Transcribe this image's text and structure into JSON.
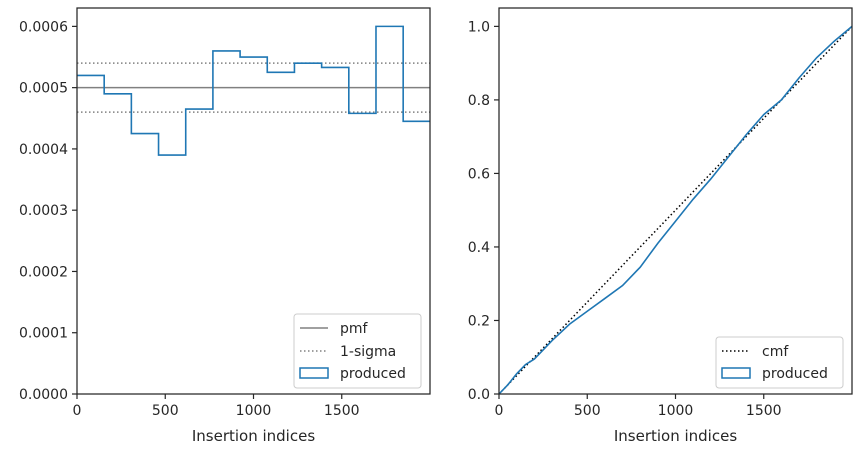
{
  "chart_data": [
    {
      "type": "step",
      "xlabel": "Insertion indices",
      "ylabel": "",
      "xlim": [
        0,
        2000
      ],
      "ylim": [
        0,
        0.00063
      ],
      "xticks": [
        0,
        500,
        1000,
        1500
      ],
      "xtick_labels": [
        "0",
        "500",
        "1000",
        "1500"
      ],
      "yticks": [
        0,
        0.0001,
        0.0002,
        0.0003,
        0.0004,
        0.0005,
        0.0006
      ],
      "ytick_labels": [
        "0.0000",
        "0.0001",
        "0.0002",
        "0.0003",
        "0.0004",
        "0.0005",
        "0.0006"
      ],
      "grid": false,
      "legend_position": "lower-right",
      "legend": [
        "pmf",
        "1-sigma",
        "produced"
      ],
      "reference_lines": [
        {
          "name": "pmf",
          "y": 0.0005,
          "style": "solid",
          "color": "#808080"
        },
        {
          "name": "1-sigma",
          "y": 0.00054,
          "style": "dotted",
          "color": "#808080"
        },
        {
          "name": "1-sigma",
          "y": 0.00046,
          "style": "dotted",
          "color": "#808080"
        }
      ],
      "series": [
        {
          "name": "produced",
          "color": "#1f77b4",
          "bin_edges": [
            0,
            154,
            308,
            462,
            616,
            770,
            924,
            1078,
            1232,
            1386,
            1540,
            1694,
            1848,
            2000
          ],
          "values": [
            0.00052,
            0.00049,
            0.000425,
            0.00039,
            0.000465,
            0.00056,
            0.00055,
            0.000525,
            0.00054,
            0.000533,
            0.000458,
            0.0006,
            0.000445
          ]
        }
      ]
    },
    {
      "type": "line",
      "xlabel": "Insertion indices",
      "ylabel": "",
      "xlim": [
        0,
        2000
      ],
      "ylim": [
        0,
        1.05
      ],
      "xticks": [
        0,
        500,
        1000,
        1500
      ],
      "xtick_labels": [
        "0",
        "500",
        "1000",
        "1500"
      ],
      "yticks": [
        0,
        0.2,
        0.4,
        0.6,
        0.8,
        1.0
      ],
      "ytick_labels": [
        "0.0",
        "0.2",
        "0.4",
        "0.6",
        "0.8",
        "1.0"
      ],
      "grid": false,
      "legend_position": "lower-right",
      "legend": [
        "cmf",
        "produced"
      ],
      "series": [
        {
          "name": "cmf",
          "color": "#000000",
          "style": "dotted",
          "x": [
            0,
            2000
          ],
          "y": [
            0,
            1.0
          ]
        },
        {
          "name": "produced",
          "color": "#1f77b4",
          "x": [
            0,
            50,
            100,
            150,
            200,
            250,
            300,
            400,
            500,
            600,
            700,
            800,
            900,
            1000,
            1100,
            1200,
            1300,
            1400,
            1500,
            1600,
            1700,
            1800,
            1900,
            2000
          ],
          "y": [
            0,
            0.025,
            0.055,
            0.08,
            0.095,
            0.12,
            0.145,
            0.19,
            0.225,
            0.26,
            0.295,
            0.345,
            0.41,
            0.47,
            0.53,
            0.585,
            0.645,
            0.705,
            0.76,
            0.8,
            0.86,
            0.915,
            0.96,
            1.0
          ]
        }
      ]
    }
  ]
}
